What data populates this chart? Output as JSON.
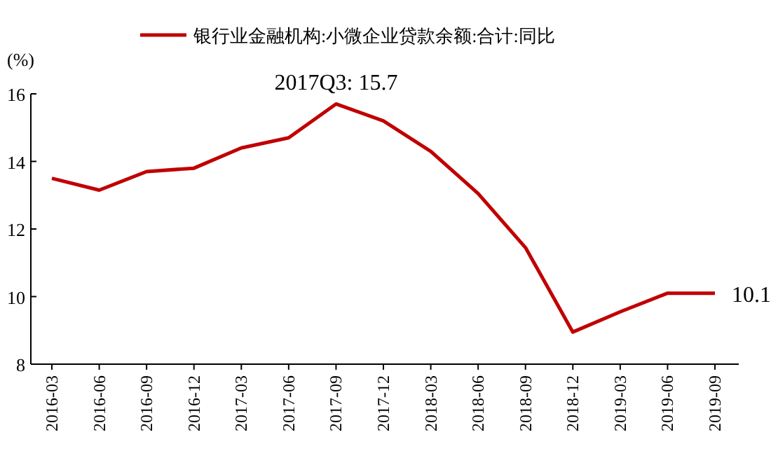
{
  "chart_data": {
    "type": "line",
    "ylabel": "(%)",
    "legend": "top",
    "categories": [
      "2016-03",
      "2016-06",
      "2016-09",
      "2016-12",
      "2017-03",
      "2017-06",
      "2017-09",
      "2017-12",
      "2018-03",
      "2018-06",
      "2018-09",
      "2018-12",
      "2019-03",
      "2019-06",
      "2019-09"
    ],
    "series": [
      {
        "name": "银行业金融机构:小微企业贷款余额:合计:同比",
        "color": "#c00000",
        "values": [
          13.5,
          13.15,
          13.7,
          13.8,
          14.4,
          14.7,
          15.7,
          15.2,
          14.3,
          13.05,
          11.45,
          8.95,
          9.55,
          10.1,
          10.1
        ]
      }
    ],
    "ylim": [
      8,
      16
    ],
    "yticks": [
      8,
      10,
      12,
      14,
      16
    ],
    "annotations": [
      {
        "text": "2017Q3: 15.7",
        "x": "2017-09",
        "y": 15.7
      },
      {
        "text": "10.1",
        "x": "2019-09",
        "y": 10.1
      }
    ]
  }
}
